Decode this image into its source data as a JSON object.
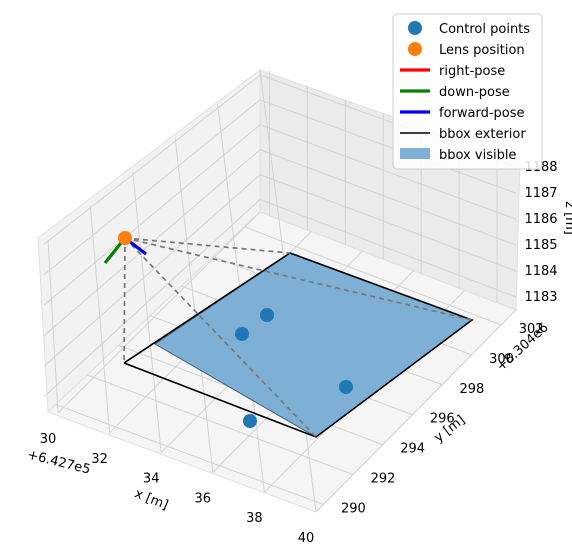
{
  "chart_data": {
    "type": "scatter",
    "projection": "3d",
    "axes": {
      "x": {
        "label": "x [m]",
        "offset_label": "+6.427e5",
        "ticks": [
          "30",
          "32",
          "34",
          "36",
          "38",
          "40"
        ],
        "range": [
          30,
          40
        ]
      },
      "y": {
        "label": "y [m]",
        "offset_label": "+8.304e6",
        "ticks": [
          "290",
          "292",
          "294",
          "296",
          "298",
          "300",
          "302"
        ],
        "range": [
          289.5,
          303
        ]
      },
      "z": {
        "label": "z [m]",
        "ticks": [
          "1183",
          "1184",
          "1185",
          "1186",
          "1187",
          "1188"
        ],
        "range": [
          1182.5,
          1188.2
        ]
      }
    },
    "grid": true,
    "legend_position": "top-right",
    "legend": [
      {
        "label": "Control points",
        "kind": "marker",
        "color": "#1f77b4"
      },
      {
        "label": "Lens position",
        "kind": "marker",
        "color": "#ff7f0e"
      },
      {
        "label": "right-pose",
        "kind": "line",
        "color": "#ff0000"
      },
      {
        "label": "down-pose",
        "kind": "line",
        "color": "#008000"
      },
      {
        "label": "forward-pose",
        "kind": "line",
        "color": "#0000ff"
      },
      {
        "label": "bbox exterior",
        "kind": "line",
        "color": "#000000"
      },
      {
        "label": "bbox visible",
        "kind": "patch",
        "color": "#7eb0d5"
      }
    ],
    "series": [
      {
        "name": "Control points",
        "x": [
          36.2,
          36.8,
          34.5,
          35.0
        ],
        "y": [
          292.5,
          293.0,
          297.5,
          298.5
        ],
        "z": [
          1183.0,
          1183.0,
          1183.0,
          1183.0
        ]
      },
      {
        "name": "Lens position",
        "x": [
          31.1
        ],
        "y": [
          295.6
        ],
        "z": [
          1185.3
        ]
      }
    ],
    "bbox_exterior": {
      "x": [
        31.1,
        38.8,
        38.8
      ],
      "y": [
        295.6,
        291.5,
        301.5
      ],
      "z": [
        1183.0,
        1183.0,
        1183.0
      ]
    },
    "bbox_visible": {
      "x": [
        31.8,
        37.0,
        38.8,
        35.5
      ],
      "y": [
        295.5,
        291.8,
        301.8,
        303.5
      ],
      "z": [
        1183.0,
        1183.0,
        1183.0,
        1183.0
      ]
    }
  }
}
